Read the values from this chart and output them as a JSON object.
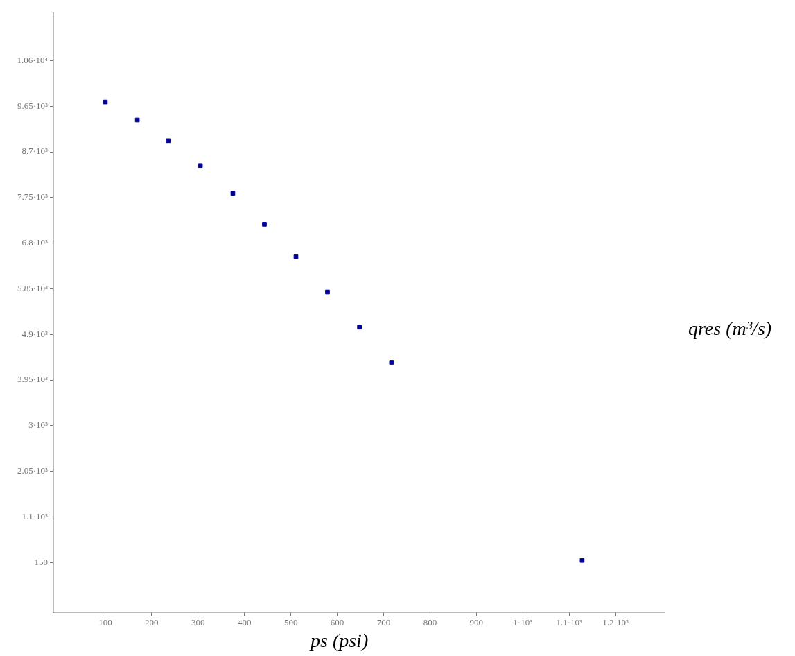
{
  "chart_data": {
    "type": "scatter",
    "xlabel": "ps (psi)",
    "ylabel": "qres (m³/s)",
    "x": [
      100,
      169,
      236,
      305,
      375,
      443,
      511,
      579,
      648,
      717,
      1128
    ],
    "series": [
      {
        "color": "#000099",
        "values": [
          9738,
          9364,
          8933,
          8415,
          7840,
          7193,
          6517,
          5784,
          5051,
          4319,
          194
        ]
      }
    ],
    "xlim": [
      -12,
      1306
    ],
    "ylim": [
      -885,
      11590
    ],
    "xticks": [
      100,
      200,
      300,
      400,
      500,
      600,
      700,
      800,
      900,
      {
        "value": 1000,
        "label": "1·10³"
      },
      {
        "value": 1100,
        "label": "1.1·10³"
      },
      {
        "value": 1200,
        "label": "1.2·10³"
      }
    ],
    "yticks": [
      150,
      {
        "value": 1100,
        "label": "1.1·10³"
      },
      {
        "value": 2050,
        "label": "2.05·10³"
      },
      {
        "value": 3000,
        "label": "3·10³"
      },
      {
        "value": 3950,
        "label": "3.95·10³"
      },
      {
        "value": 4900,
        "label": "4.9·10³"
      },
      {
        "value": 5850,
        "label": "5.85·10³"
      },
      {
        "value": 6800,
        "label": "6.8·10³"
      },
      {
        "value": 7750,
        "label": "7.75·10³"
      },
      {
        "value": 8700,
        "label": "8.7·10³"
      },
      {
        "value": 9650,
        "label": "9.65·10³"
      },
      {
        "value": 10600,
        "label": "1.06·10⁴"
      }
    ],
    "grid": false,
    "legend": false,
    "marker": "square"
  }
}
